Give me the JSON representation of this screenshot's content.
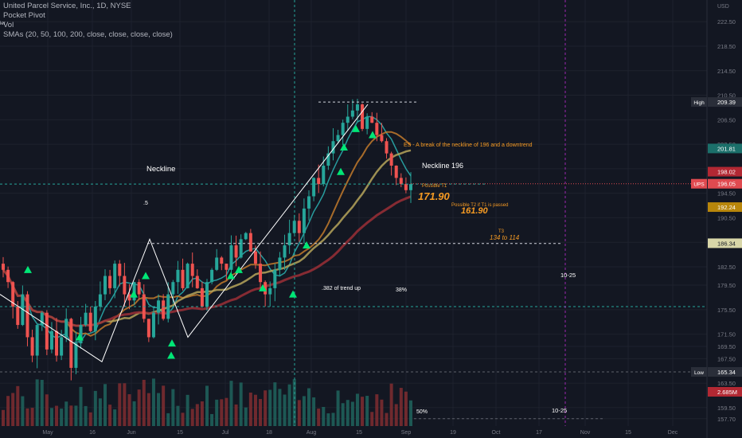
{
  "legend": {
    "title": "United Parcel Service, Inc., 1D, NYSE",
    "line2": "Pocket Pivot",
    "line3": "Vol",
    "line4": "SMAs (20, 50, 100, 200, close, close, close, close)",
    "tiny": "ler"
  },
  "axis": {
    "currency": "USD",
    "ticks": [
      "222.50",
      "218.50",
      "214.50",
      "210.50",
      "206.50",
      "202.50",
      "198.50",
      "194.50",
      "190.50",
      "186.50",
      "182.50",
      "179.50",
      "175.50",
      "171.50",
      "169.50",
      "167.50",
      "163.50",
      "159.50",
      "157.70"
    ],
    "badges": [
      {
        "label": "High",
        "value": "209.39",
        "color": "#2a2e39"
      },
      {
        "label": "",
        "value": "201.81",
        "color": "#1b6f6a"
      },
      {
        "label": "",
        "value": "198.02",
        "color": "#b22833"
      },
      {
        "label": "UPS",
        "value": "196.05",
        "color": "#e04a50"
      },
      {
        "label": "",
        "value": "192.24",
        "color": "#b8860b"
      },
      {
        "label": "",
        "value": "186.34",
        "color": "#d8d6a8"
      },
      {
        "label": "Low",
        "value": "165.34",
        "color": "#2a2e39"
      },
      {
        "label": "",
        "value": "2.685M",
        "color": "#b22833"
      }
    ],
    "x_ticks": [
      "May",
      "16",
      "Jun",
      "15",
      "Jul",
      "18",
      "Aug",
      "15",
      "Sep",
      "19",
      "Oct",
      "17",
      "Nov",
      "15",
      "Dec"
    ]
  },
  "annotations": {
    "neckline_left": "Neckline",
    "neckline_right": "Neckline 196",
    "es_note": "ES - A break of the neckline of 196 and a downtrend",
    "t1_label": "Possible T1",
    "t1_value": "171.90",
    "t2_label": "Possible T2 if T1 is passed",
    "t2_value": "161.90",
    "t3_label": "T3",
    "t3_value": "134 to 114",
    "fib_half": ".5",
    "fib_382": ".382 of trend up",
    "fib_38": "38%",
    "fib_50": "50%",
    "date_a": "10-25",
    "date_b": "10-25"
  },
  "chart_data": {
    "type": "candlestick",
    "symbol": "UPS",
    "timeframe": "1D",
    "exchange": "NYSE",
    "ylim": [
      156.5,
      225
    ],
    "levels": {
      "high": 209.39,
      "low": 165.34,
      "last": 196.05,
      "neckline": 196,
      "sma_values": [
        201.81,
        198.02,
        192.24,
        186.34
      ]
    },
    "close_path": [
      182,
      180,
      176,
      173,
      178,
      171,
      168,
      173,
      175,
      169,
      172,
      168,
      171,
      174,
      166,
      170,
      173,
      175,
      172,
      176,
      178,
      181,
      179,
      183,
      181,
      178,
      177,
      180,
      178,
      174,
      171,
      175,
      177,
      174,
      178,
      180,
      182,
      179,
      183,
      181,
      179,
      176,
      180,
      182,
      184,
      183,
      182,
      186,
      184,
      187,
      188,
      185,
      183,
      180,
      178,
      179,
      182,
      184,
      186,
      188,
      190,
      188,
      192,
      194,
      197,
      196,
      199,
      201,
      203,
      204,
      206,
      207,
      208,
      209,
      205,
      207,
      206,
      204,
      203,
      201,
      199,
      197,
      196,
      195,
      196
    ]
  }
}
